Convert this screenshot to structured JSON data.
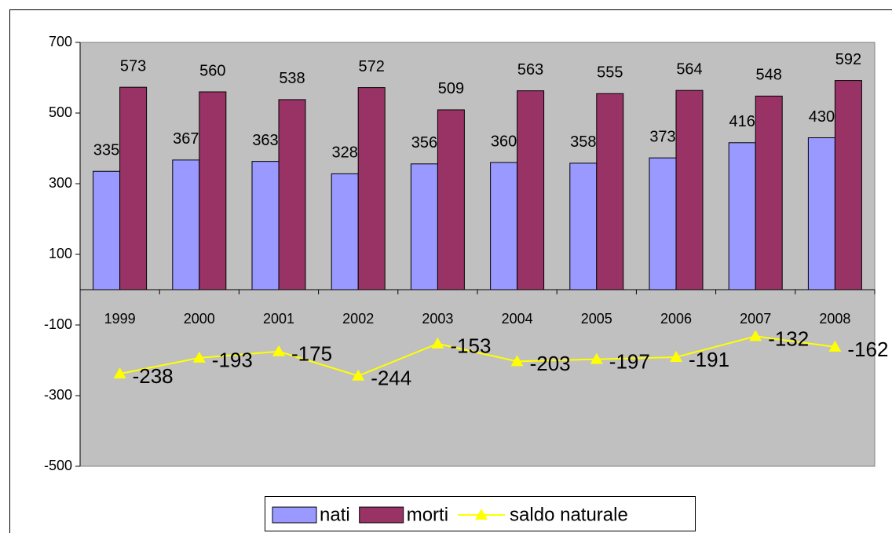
{
  "chart_data": {
    "type": "bar",
    "categories": [
      "1999",
      "2000",
      "2001",
      "2002",
      "2003",
      "2004",
      "2005",
      "2006",
      "2007",
      "2008"
    ],
    "series": [
      {
        "name": "nati",
        "color": "#9999ff",
        "values": [
          335,
          367,
          363,
          328,
          356,
          360,
          358,
          373,
          416,
          430
        ]
      },
      {
        "name": "morti",
        "color": "#993366",
        "values": [
          573,
          560,
          538,
          572,
          509,
          563,
          555,
          564,
          548,
          592
        ]
      },
      {
        "name": "saldo naturale",
        "type": "line",
        "color": "#ffff00",
        "values": [
          -238,
          -193,
          -175,
          -244,
          -153,
          -203,
          -197,
          -191,
          -132,
          -162
        ]
      }
    ],
    "ylim": [
      -500,
      700
    ],
    "yticks": [
      -500,
      -300,
      -100,
      100,
      300,
      500,
      700
    ],
    "plot_background": "#c0c0c0",
    "legend": "bottom"
  }
}
